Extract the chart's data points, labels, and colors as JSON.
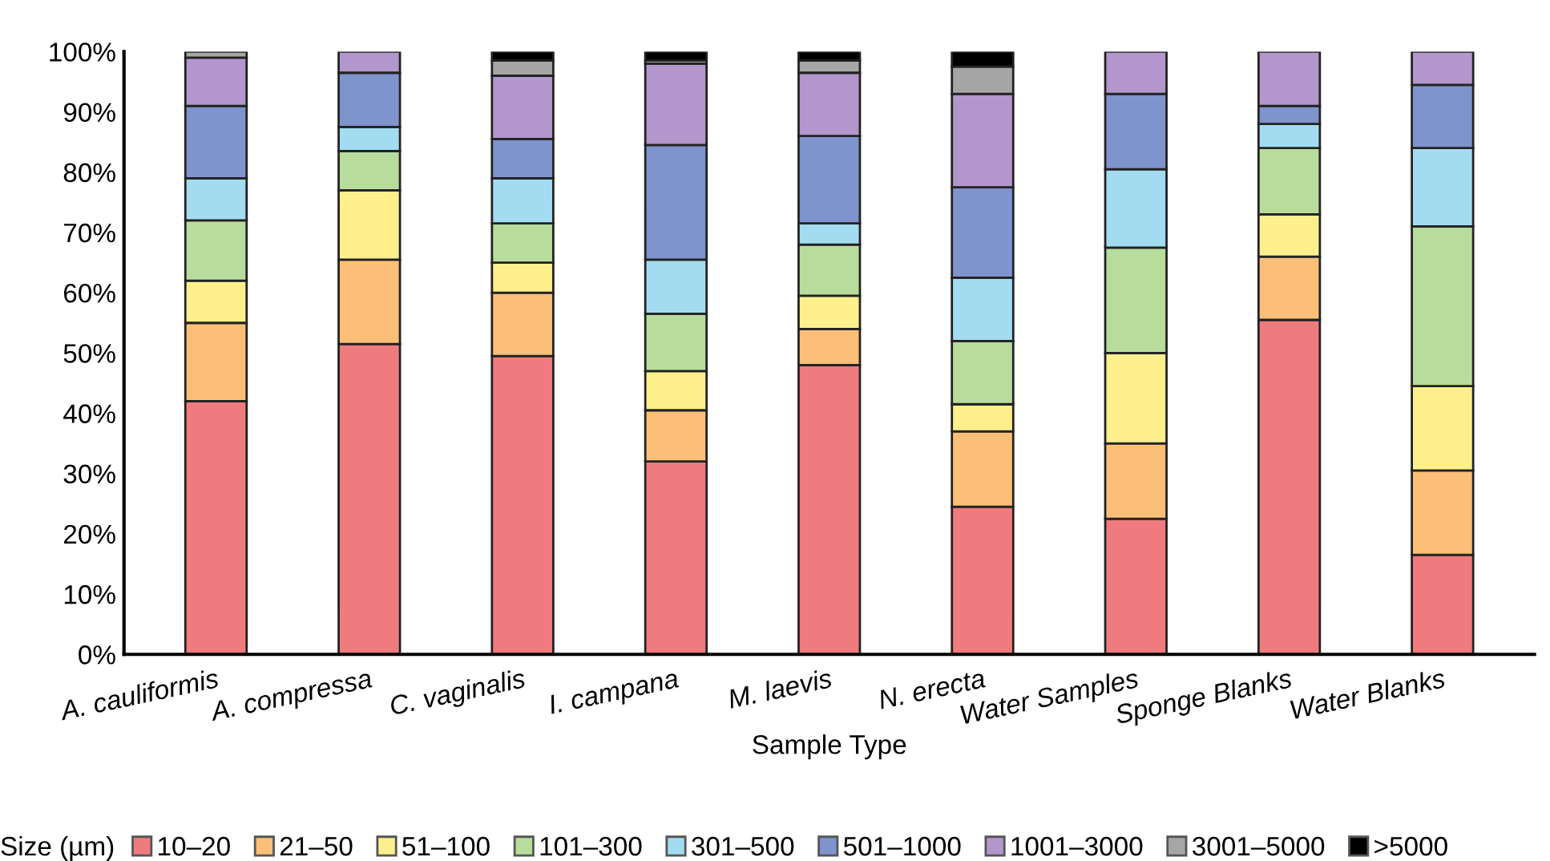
{
  "chart_data": {
    "type": "bar",
    "stacked": true,
    "xlabel": "Sample Type",
    "legend_title": "Size (µm)",
    "legend": "bottom",
    "categories": [
      "A. cauliformis",
      "A. compressa",
      "C. vaginalis",
      "I. campana",
      "M. laevis",
      "N. erecta",
      "Water Samples",
      "Sponge Blanks",
      "Water Blanks"
    ],
    "series": [
      {
        "name": "10–20",
        "color": "#f07b7f",
        "values": [
          42,
          51.5,
          49.5,
          32,
          48,
          24.5,
          22.5,
          55.5,
          16.5
        ]
      },
      {
        "name": "21–50",
        "color": "#fbbf77",
        "values": [
          13,
          14,
          10.5,
          8.5,
          6,
          12.5,
          12.5,
          10.5,
          14
        ]
      },
      {
        "name": "51–100",
        "color": "#fdf08c",
        "values": [
          7,
          11.5,
          5,
          6.5,
          5.5,
          4.5,
          15,
          7,
          14
        ]
      },
      {
        "name": "101–300",
        "color": "#b8dc9c",
        "values": [
          10,
          6.5,
          6.5,
          9.5,
          8.5,
          10.5,
          17.5,
          11,
          26.5
        ]
      },
      {
        "name": "301–500",
        "color": "#a3dcf0",
        "values": [
          7,
          4,
          7.5,
          9,
          3.5,
          10.5,
          13,
          4,
          13
        ]
      },
      {
        "name": "501–1000",
        "color": "#7f93cc",
        "values": [
          12,
          9,
          6.5,
          19,
          14.5,
          15,
          12.5,
          3,
          10.5
        ]
      },
      {
        "name": "1001–3000",
        "color": "#b296cc",
        "values": [
          8,
          3.5,
          10.5,
          13.5,
          10.5,
          15.5,
          7,
          9,
          5.5
        ]
      },
      {
        "name": "3001–5000",
        "color": "#a6a6a6",
        "values": [
          1,
          null,
          2.5,
          0.5,
          2,
          4.5,
          null,
          null,
          null
        ]
      },
      {
        "name": ">5000",
        "color": "#000000",
        "values": [
          null,
          null,
          1.5,
          1.5,
          1.5,
          2.5,
          null,
          null,
          null
        ]
      }
    ],
    "ylim": [
      0,
      100
    ],
    "yticks": [
      {
        "value": 0,
        "label": "0%"
      },
      {
        "value": 10,
        "label": "10%"
      },
      {
        "value": 20,
        "label": "20%"
      },
      {
        "value": 30,
        "label": "30%"
      },
      {
        "value": 40,
        "label": "40%"
      },
      {
        "value": 50,
        "label": "50%"
      },
      {
        "value": 60,
        "label": "60%"
      },
      {
        "value": 70,
        "label": "70%"
      },
      {
        "value": 80,
        "label": "80%"
      },
      {
        "value": 90,
        "label": "90%"
      },
      {
        "value": 100,
        "label": "100%"
      }
    ],
    "grid": false
  }
}
